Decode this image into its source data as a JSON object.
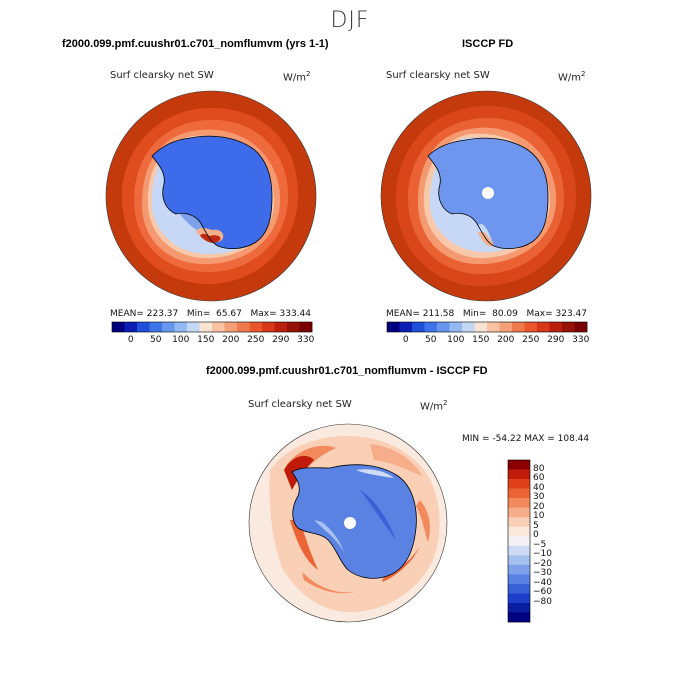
{
  "figure": {
    "season": "DJF"
  },
  "panels": [
    {
      "id": "model",
      "title": "f2000.099.pmf.cuushr01.c701_nomflumvm (yrs 1-1)",
      "variable": "Surf clearsky net SW",
      "units": "W/m",
      "units_sup": "2",
      "stats": {
        "mean_label": "MEAN=",
        "mean": "223.37",
        "min_label": "Min=",
        "min": "65.67",
        "max_label": "Max=",
        "max": "333.44"
      },
      "pole_hole": false
    },
    {
      "id": "obs",
      "title": "ISCCP FD",
      "variable": "Surf clearsky net SW",
      "units": "W/m",
      "units_sup": "2",
      "stats": {
        "mean_label": "MEAN=",
        "mean": "211.58",
        "min_label": "Min=",
        "min": "80.09",
        "max_label": "Max=",
        "max": "323.47"
      },
      "pole_hole": true
    },
    {
      "id": "diff",
      "title": "f2000.099.pmf.cuushr01.c701_nomflumvm - ISCCP FD",
      "variable": "Surf clearsky net SW",
      "units": "W/m",
      "units_sup": "2",
      "stats_text": "MIN = -54.22  MAX = 108.44",
      "pole_hole": true
    }
  ],
  "colorbar_top": {
    "tick_labels": [
      "0",
      "50",
      "100",
      "150",
      "200",
      "250",
      "290",
      "330"
    ],
    "colors": [
      "#00007f",
      "#0a1eb4",
      "#1f4fd8",
      "#3d74ea",
      "#6696ee",
      "#93b8f2",
      "#c4d8f6",
      "#f9e4d4",
      "#f9c2a2",
      "#f59f76",
      "#ef7a4e",
      "#e9562c",
      "#d8371a",
      "#bb200e",
      "#961106",
      "#7a0000"
    ]
  },
  "colorbar_diff": {
    "tick_labels": [
      "80",
      "60",
      "40",
      "30",
      "20",
      "10",
      "5",
      "0",
      "−5",
      "−10",
      "−20",
      "−30",
      "−40",
      "−60",
      "−80"
    ],
    "colors": [
      "#8b0000",
      "#c01a0a",
      "#e0401a",
      "#ec6436",
      "#f28a5e",
      "#f6ad8a",
      "#f9cfb6",
      "#fbe9de",
      "#f4f1f4",
      "#cddcf4",
      "#a6c0f0",
      "#7ea2ea",
      "#5a82e2",
      "#3a60d8",
      "#1c3ecb",
      "#0a1ea0",
      "#000080"
    ]
  }
}
